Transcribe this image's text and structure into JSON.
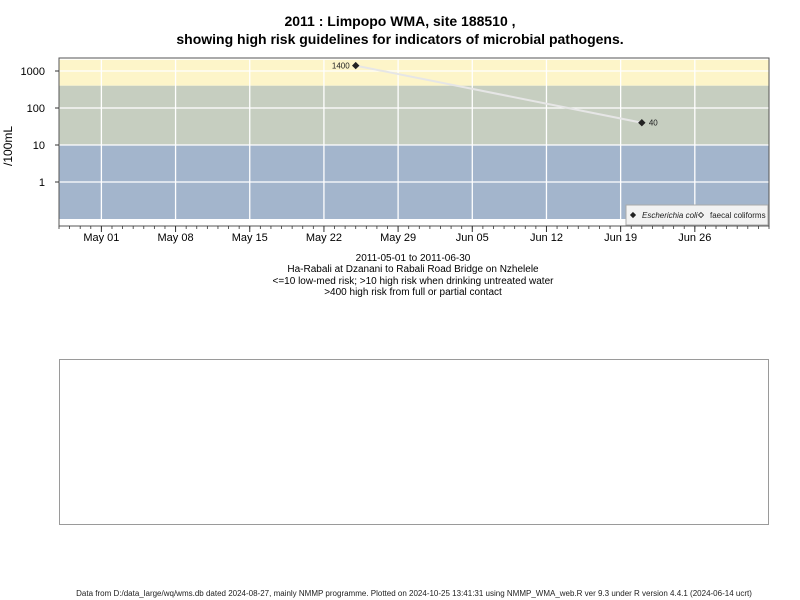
{
  "chart_data": {
    "type": "scatter",
    "title_line1": "2011 : Limpopo WMA, site 188510 ,",
    "title_line2": "showing high risk guidelines for indicators of microbial pathogens.",
    "ylabel": "/100mL",
    "y_scale": "log",
    "y_ticks": [
      "1",
      "10",
      "100",
      "1000"
    ],
    "x_range": [
      "2011-04-27",
      "2011-07-03"
    ],
    "x_ticks": [
      {
        "date": "2011-05-01",
        "label": "May 01"
      },
      {
        "date": "2011-05-08",
        "label": "May 08"
      },
      {
        "date": "2011-05-15",
        "label": "May 15"
      },
      {
        "date": "2011-05-22",
        "label": "May 22"
      },
      {
        "date": "2011-05-29",
        "label": "May 29"
      },
      {
        "date": "2011-06-05",
        "label": "Jun 05"
      },
      {
        "date": "2011-06-12",
        "label": "Jun 12"
      },
      {
        "date": "2011-06-19",
        "label": "Jun 19"
      },
      {
        "date": "2011-06-26",
        "label": "Jun 26"
      }
    ],
    "grid": true,
    "bands": [
      {
        "from": 400,
        "to": 2000,
        "color": "#fdf5c9"
      },
      {
        "from": 10,
        "to": 400,
        "color": "#c6cec0"
      },
      {
        "from": 0.1,
        "to": 10,
        "color": "#a3b5cc"
      }
    ],
    "series": [
      {
        "name": "Escherichia coli",
        "marker": "filled-diamond",
        "color": "#222222",
        "points": [
          {
            "date": "2011-05-25",
            "value": 1400,
            "label": "1400"
          },
          {
            "date": "2011-06-21",
            "value": 40,
            "label": "40"
          }
        ]
      },
      {
        "name": "faecal coliforms",
        "marker": "open-diamond",
        "color": "#222222",
        "points": []
      }
    ],
    "legend_position": "bottom-right",
    "subtitle": [
      "2011-05-01 to 2011-06-30",
      "Ha-Rabali at Dzanani to Rabali Road Bridge on Nzhelele",
      "<=10 low-med risk; >10 high risk when drinking untreated water",
      ">400 high risk from full or partial contact"
    ]
  },
  "footer": "Data from D:/data_large/wq/wms.db dated 2024-08-27, mainly NMMP programme. Plotted on 2024-10-25 13:41:31 using NMMP_WMA_web.R ver 9.3 under R version 4.4.1 (2024-06-14 ucrt)"
}
